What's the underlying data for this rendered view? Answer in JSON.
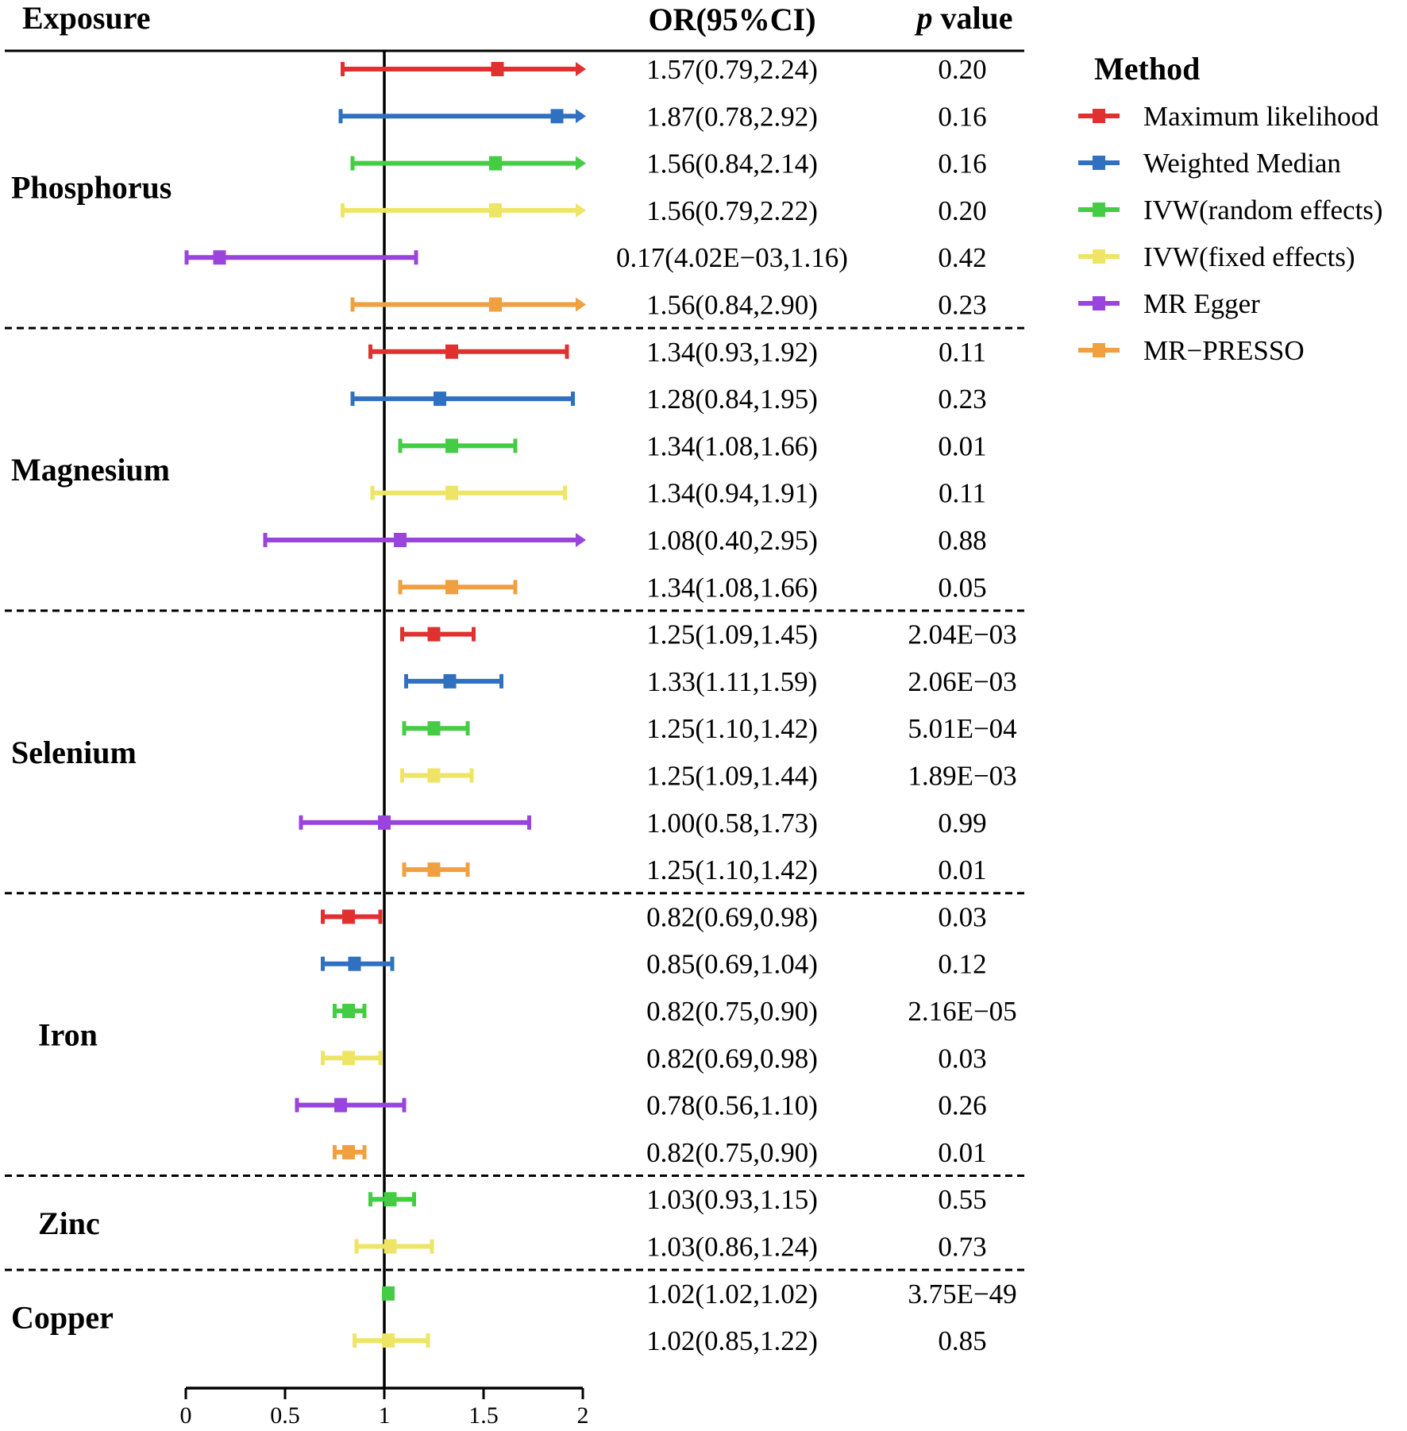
{
  "chart_data": {
    "type": "forest",
    "headers": {
      "exposure": "Exposure",
      "or": "OR(95%CI)",
      "p_italic": "p",
      "p_rest": " value"
    },
    "xlim": [
      0,
      2
    ],
    "xticks": [
      0,
      0.5,
      1,
      1.5,
      2
    ],
    "xtick_labels": [
      "0",
      "0.5",
      "1",
      "1.5",
      "2"
    ],
    "reference_line": 1,
    "arrow_cap": 2,
    "methods": [
      {
        "name": "Maximum likelihood",
        "color": "#e03030"
      },
      {
        "name": "Weighted Median",
        "color": "#3070c0"
      },
      {
        "name": "IVW(random effects)",
        "color": "#44cc44"
      },
      {
        "name": "IVW(fixed effects)",
        "color": "#eee566"
      },
      {
        "name": "MR Egger",
        "color": "#9944dd"
      },
      {
        "name": "MR−PRESSO",
        "color": "#f0a040"
      }
    ],
    "legend": {
      "title": "Method",
      "position": "right"
    },
    "groups": [
      {
        "name": "Phosphorus",
        "rows": [
          {
            "method": 0,
            "or": 1.57,
            "lo": 0.79,
            "hi": 2.24,
            "ci_text": "1.57(0.79,2.24)",
            "p": "0.20"
          },
          {
            "method": 1,
            "or": 1.87,
            "lo": 0.78,
            "hi": 2.92,
            "ci_text": "1.87(0.78,2.92)",
            "p": "0.16"
          },
          {
            "method": 2,
            "or": 1.56,
            "lo": 0.84,
            "hi": 2.14,
            "ci_text": "1.56(0.84,2.14)",
            "p": "0.16"
          },
          {
            "method": 3,
            "or": 1.56,
            "lo": 0.79,
            "hi": 2.22,
            "ci_text": "1.56(0.79,2.22)",
            "p": "0.20"
          },
          {
            "method": 4,
            "or": 0.17,
            "lo": 0.00402,
            "hi": 1.16,
            "ci_text": "0.17(4.02E−03,1.16)",
            "p": "0.42"
          },
          {
            "method": 5,
            "or": 1.56,
            "lo": 0.84,
            "hi": 2.9,
            "ci_text": "1.56(0.84,2.90)",
            "p": "0.23"
          }
        ]
      },
      {
        "name": "Magnesium",
        "rows": [
          {
            "method": 0,
            "or": 1.34,
            "lo": 0.93,
            "hi": 1.92,
            "ci_text": "1.34(0.93,1.92)",
            "p": "0.11"
          },
          {
            "method": 1,
            "or": 1.28,
            "lo": 0.84,
            "hi": 1.95,
            "ci_text": "1.28(0.84,1.95)",
            "p": "0.23"
          },
          {
            "method": 2,
            "or": 1.34,
            "lo": 1.08,
            "hi": 1.66,
            "ci_text": "1.34(1.08,1.66)",
            "p": "0.01"
          },
          {
            "method": 3,
            "or": 1.34,
            "lo": 0.94,
            "hi": 1.91,
            "ci_text": "1.34(0.94,1.91)",
            "p": "0.11"
          },
          {
            "method": 4,
            "or": 1.08,
            "lo": 0.4,
            "hi": 2.95,
            "ci_text": "1.08(0.40,2.95)",
            "p": "0.88"
          },
          {
            "method": 5,
            "or": 1.34,
            "lo": 1.08,
            "hi": 1.66,
            "ci_text": "1.34(1.08,1.66)",
            "p": "0.05"
          }
        ]
      },
      {
        "name": "Selenium",
        "rows": [
          {
            "method": 0,
            "or": 1.25,
            "lo": 1.09,
            "hi": 1.45,
            "ci_text": "1.25(1.09,1.45)",
            "p": "2.04E−03"
          },
          {
            "method": 1,
            "or": 1.33,
            "lo": 1.11,
            "hi": 1.59,
            "ci_text": "1.33(1.11,1.59)",
            "p": "2.06E−03"
          },
          {
            "method": 2,
            "or": 1.25,
            "lo": 1.1,
            "hi": 1.42,
            "ci_text": "1.25(1.10,1.42)",
            "p": "5.01E−04"
          },
          {
            "method": 3,
            "or": 1.25,
            "lo": 1.09,
            "hi": 1.44,
            "ci_text": "1.25(1.09,1.44)",
            "p": "1.89E−03"
          },
          {
            "method": 4,
            "or": 1.0,
            "lo": 0.58,
            "hi": 1.73,
            "ci_text": "1.00(0.58,1.73)",
            "p": "0.99"
          },
          {
            "method": 5,
            "or": 1.25,
            "lo": 1.1,
            "hi": 1.42,
            "ci_text": "1.25(1.10,1.42)",
            "p": "0.01"
          }
        ]
      },
      {
        "name": "Iron",
        "rows": [
          {
            "method": 0,
            "or": 0.82,
            "lo": 0.69,
            "hi": 0.98,
            "ci_text": "0.82(0.69,0.98)",
            "p": "0.03"
          },
          {
            "method": 1,
            "or": 0.85,
            "lo": 0.69,
            "hi": 1.04,
            "ci_text": "0.85(0.69,1.04)",
            "p": "0.12"
          },
          {
            "method": 2,
            "or": 0.82,
            "lo": 0.75,
            "hi": 0.9,
            "ci_text": "0.82(0.75,0.90)",
            "p": "2.16E−05"
          },
          {
            "method": 3,
            "or": 0.82,
            "lo": 0.69,
            "hi": 0.98,
            "ci_text": "0.82(0.69,0.98)",
            "p": "0.03"
          },
          {
            "method": 4,
            "or": 0.78,
            "lo": 0.56,
            "hi": 1.1,
            "ci_text": "0.78(0.56,1.10)",
            "p": "0.26"
          },
          {
            "method": 5,
            "or": 0.82,
            "lo": 0.75,
            "hi": 0.9,
            "ci_text": "0.82(0.75,0.90)",
            "p": "0.01"
          }
        ]
      },
      {
        "name": "Zinc",
        "rows": [
          {
            "method": 2,
            "or": 1.03,
            "lo": 0.93,
            "hi": 1.15,
            "ci_text": "1.03(0.93,1.15)",
            "p": "0.55"
          },
          {
            "method": 3,
            "or": 1.03,
            "lo": 0.86,
            "hi": 1.24,
            "ci_text": "1.03(0.86,1.24)",
            "p": "0.73"
          }
        ]
      },
      {
        "name": "Copper",
        "rows": [
          {
            "method": 2,
            "or": 1.02,
            "lo": 1.02,
            "hi": 1.02,
            "ci_text": "1.02(1.02,1.02)",
            "p": "3.75E−49"
          },
          {
            "method": 3,
            "or": 1.02,
            "lo": 0.85,
            "hi": 1.22,
            "ci_text": "1.02(0.85,1.22)",
            "p": "0.85"
          }
        ]
      }
    ]
  }
}
